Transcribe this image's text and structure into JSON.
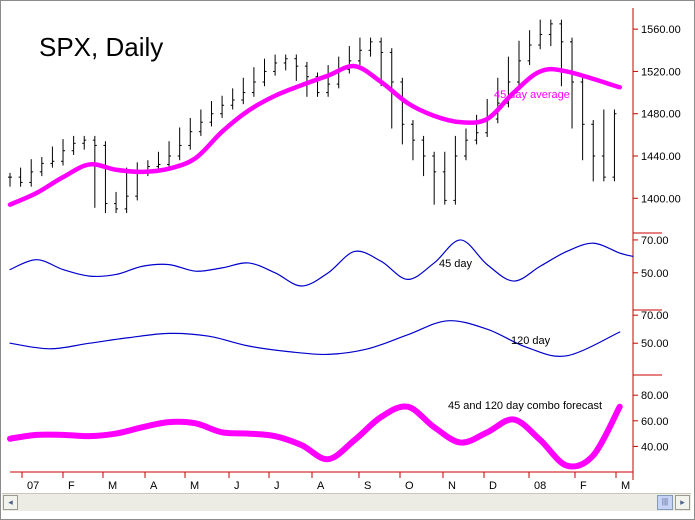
{
  "chart_data": [
    {
      "type": "line",
      "title": "SPX, Daily",
      "ylim": [
        1370,
        1580
      ],
      "yticks": [
        "1400.00",
        "1440.00",
        "1480.00",
        "1520.00",
        "1560.00"
      ],
      "yticks_values": [
        1400,
        1440,
        1480,
        1520,
        1560
      ],
      "xticks": [
        "07",
        "F",
        "M",
        "A",
        "M",
        "J",
        "J",
        "A",
        "S",
        "O",
        "N",
        "D",
        "08",
        "F",
        "M"
      ],
      "series": [
        {
          "name": "45 day average",
          "color": "#ff00ff",
          "x": [
            0,
            10,
            20,
            30,
            40,
            50,
            60,
            70,
            80,
            90,
            100,
            110,
            120,
            130,
            140,
            150,
            160,
            170,
            180,
            190,
            200,
            210,
            230
          ],
          "values": [
            1394,
            1405,
            1420,
            1432,
            1427,
            1425,
            1428,
            1438,
            1463,
            1483,
            1497,
            1507,
            1516,
            1525,
            1510,
            1490,
            1478,
            1472,
            1475,
            1500,
            1520,
            1520,
            1505
          ]
        }
      ],
      "price_bars": {
        "color": "#000000",
        "x": [
          0,
          4,
          8,
          12,
          16,
          20,
          24,
          28,
          32,
          36,
          40,
          44,
          48,
          52,
          56,
          60,
          64,
          68,
          72,
          76,
          80,
          84,
          88,
          92,
          96,
          100,
          104,
          108,
          112,
          116,
          120,
          124,
          128,
          132,
          136,
          140,
          144,
          148,
          152,
          156,
          160,
          164,
          168,
          172,
          176,
          180,
          184,
          188,
          192,
          196,
          200,
          204,
          208,
          212,
          216,
          220,
          224,
          228
        ],
        "close": [
          1420,
          1415,
          1425,
          1433,
          1435,
          1445,
          1452,
          1455,
          1450,
          1395,
          1390,
          1402,
          1425,
          1430,
          1432,
          1440,
          1450,
          1463,
          1472,
          1480,
          1488,
          1493,
          1500,
          1510,
          1520,
          1528,
          1532,
          1525,
          1515,
          1500,
          1508,
          1522,
          1530,
          1540,
          1548,
          1538,
          1510,
          1470,
          1455,
          1440,
          1425,
          1398,
          1440,
          1455,
          1462,
          1475,
          1490,
          1510,
          1530,
          1545,
          1555,
          1565,
          1548,
          1510,
          1470,
          1440,
          1420,
          1480
        ]
      }
    },
    {
      "type": "line",
      "ylim": [
        28,
        73
      ],
      "yticks": [
        "50.00",
        "70.00"
      ],
      "yticks_values": [
        50,
        70
      ],
      "series": [
        {
          "name": "45 day",
          "color": "#0000cc",
          "x": [
            0,
            10,
            20,
            30,
            40,
            50,
            60,
            70,
            80,
            90,
            100,
            110,
            120,
            130,
            140,
            150,
            160,
            170,
            180,
            190,
            200,
            210,
            220,
            230,
            235
          ],
          "values": [
            52,
            58,
            52,
            48,
            49,
            54,
            55,
            51,
            53,
            56,
            50,
            42,
            50,
            63,
            57,
            46,
            56,
            70,
            55,
            45,
            54,
            63,
            68,
            62,
            60
          ]
        }
      ]
    },
    {
      "type": "line",
      "ylim": [
        28,
        73
      ],
      "yticks": [
        "50.00",
        "70.00"
      ],
      "yticks_values": [
        50,
        70
      ],
      "series": [
        {
          "name": "120 day",
          "color": "#0000cc",
          "x": [
            0,
            15,
            30,
            45,
            60,
            75,
            90,
            105,
            120,
            135,
            150,
            165,
            180,
            195,
            210,
            230
          ],
          "values": [
            50,
            46,
            50,
            54,
            57,
            55,
            48,
            44,
            42,
            46,
            56,
            66,
            60,
            47,
            41,
            58
          ]
        }
      ]
    },
    {
      "type": "line",
      "ylim": [
        20,
        95
      ],
      "yticks": [
        "40.00",
        "60.00",
        "80.00"
      ],
      "yticks_values": [
        40,
        60,
        80
      ],
      "series": [
        {
          "name": "45 and 120 day combo forecast",
          "color": "#ff00ff",
          "x": [
            0,
            10,
            20,
            30,
            40,
            50,
            60,
            70,
            80,
            90,
            100,
            110,
            120,
            130,
            140,
            150,
            160,
            170,
            180,
            190,
            200,
            210,
            220,
            230
          ],
          "values": [
            46,
            49,
            49,
            48,
            50,
            55,
            59,
            58,
            51,
            50,
            48,
            41,
            30,
            45,
            63,
            71,
            55,
            43,
            51,
            61,
            45,
            25,
            33,
            71
          ]
        }
      ]
    }
  ],
  "scrollbar": {
    "left_arrow": "◂",
    "right_arrow": "▸",
    "thumb_grip": "|||"
  }
}
